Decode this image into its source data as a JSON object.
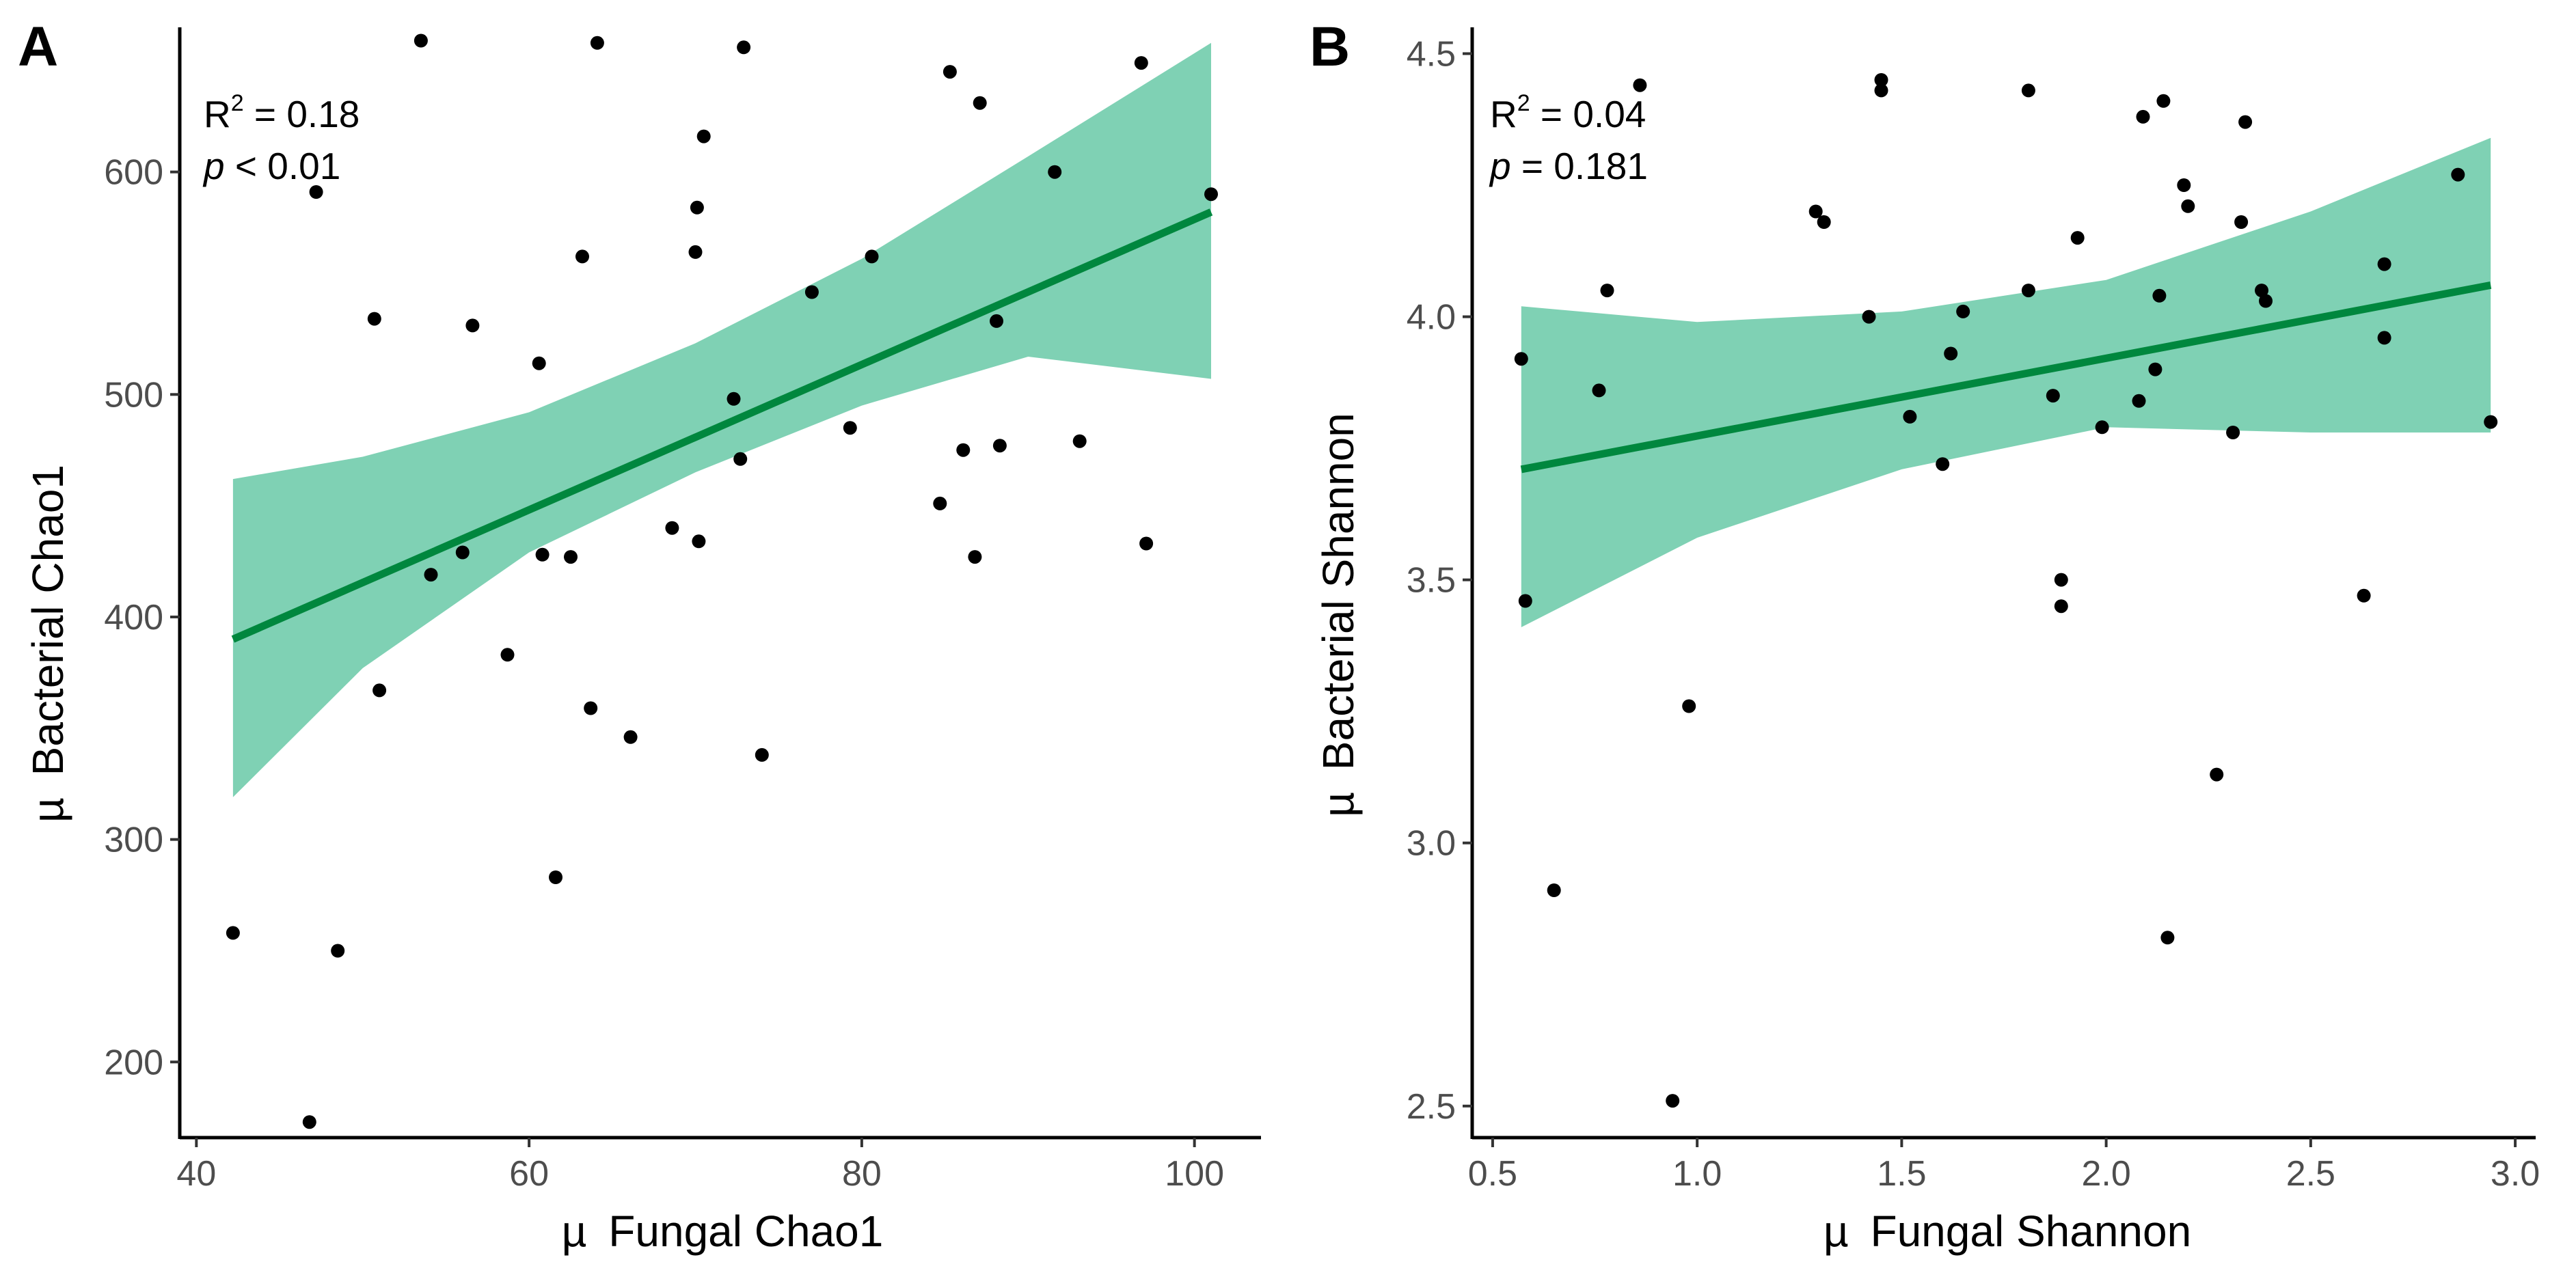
{
  "figure": {
    "panels": [
      "A",
      "B"
    ]
  },
  "chart_data": [
    {
      "type": "scatter",
      "panel_label": "A",
      "xlabel_symbol": "µ",
      "xlabel": "Fungal Chao1",
      "ylabel_symbol": "µ",
      "ylabel": "Bacterial Chao1",
      "xlim": [
        39,
        104
      ],
      "ylim": [
        166,
        665
      ],
      "xticks": [
        40,
        60,
        80,
        100
      ],
      "yticks": [
        200,
        300,
        400,
        500,
        600
      ],
      "annotation": {
        "r2_label": "R",
        "r2_sup": "2",
        "r2_value": " = 0.18",
        "p_label": "p",
        "p_value": " < 0.01"
      },
      "points": [
        [
          42.2,
          258
        ],
        [
          46.8,
          173
        ],
        [
          47.2,
          591
        ],
        [
          48.5,
          250
        ],
        [
          50.7,
          534
        ],
        [
          51.0,
          367
        ],
        [
          53.5,
          659
        ],
        [
          54.1,
          419
        ],
        [
          56.0,
          429
        ],
        [
          56.6,
          531
        ],
        [
          58.7,
          383
        ],
        [
          60.6,
          514
        ],
        [
          60.8,
          428
        ],
        [
          61.6,
          283
        ],
        [
          62.5,
          427
        ],
        [
          63.2,
          562
        ],
        [
          63.7,
          359
        ],
        [
          64.1,
          658
        ],
        [
          66.1,
          346
        ],
        [
          68.6,
          440
        ],
        [
          70.0,
          564
        ],
        [
          70.1,
          584
        ],
        [
          70.2,
          434
        ],
        [
          70.5,
          616
        ],
        [
          72.3,
          498
        ],
        [
          72.7,
          471
        ],
        [
          72.9,
          656
        ],
        [
          74.0,
          338
        ],
        [
          77.0,
          546
        ],
        [
          79.3,
          485
        ],
        [
          80.6,
          562
        ],
        [
          84.7,
          451
        ],
        [
          85.3,
          645
        ],
        [
          86.1,
          475
        ],
        [
          86.8,
          427
        ],
        [
          87.1,
          631
        ],
        [
          88.1,
          533
        ],
        [
          88.3,
          477
        ],
        [
          91.6,
          600
        ],
        [
          93.1,
          479
        ],
        [
          96.8,
          649
        ],
        [
          97.1,
          433
        ],
        [
          101.0,
          590
        ]
      ],
      "trend": {
        "x": [
          42.2,
          101.0
        ],
        "y": [
          390,
          582
        ]
      },
      "band": {
        "x": [
          42.2,
          50,
          60,
          70,
          80,
          90,
          101.0
        ],
        "upper": [
          462,
          472,
          492,
          523,
          561,
          607,
          658
        ],
        "lower": [
          319,
          377,
          429,
          465,
          495,
          517,
          507
        ]
      },
      "colors": {
        "points": "#000000",
        "line": "#00873e",
        "band": "#7fd1b4"
      }
    },
    {
      "type": "scatter",
      "panel_label": "B",
      "xlabel_symbol": "µ",
      "xlabel": "Fungal Shannon",
      "ylabel_symbol": "µ",
      "ylabel": "Bacterial Shannon",
      "xlim": [
        0.45,
        3.05
      ],
      "ylim": [
        2.44,
        4.55
      ],
      "xticks": [
        "0.5",
        "1.0",
        "1.5",
        "2.0",
        "2.5",
        "3.0"
      ],
      "yticks": [
        "2.5",
        "3.0",
        "3.5",
        "4.0",
        "4.5"
      ],
      "annotation": {
        "r2_label": "R",
        "r2_sup": "2",
        "r2_value": " = 0.04",
        "p_label": "p",
        "p_value": " = 0.181"
      },
      "points": [
        [
          0.57,
          3.92
        ],
        [
          0.58,
          3.46
        ],
        [
          0.65,
          2.91
        ],
        [
          0.76,
          3.86
        ],
        [
          0.78,
          4.05
        ],
        [
          0.86,
          4.44
        ],
        [
          0.94,
          2.51
        ],
        [
          0.98,
          3.26
        ],
        [
          1.29,
          4.2
        ],
        [
          1.31,
          4.18
        ],
        [
          1.42,
          4.0
        ],
        [
          1.45,
          4.45
        ],
        [
          1.45,
          4.43
        ],
        [
          1.52,
          3.81
        ],
        [
          1.6,
          3.72
        ],
        [
          1.62,
          3.93
        ],
        [
          1.65,
          4.01
        ],
        [
          1.81,
          4.05
        ],
        [
          1.81,
          4.43
        ],
        [
          1.87,
          3.85
        ],
        [
          1.89,
          3.5
        ],
        [
          1.89,
          3.45
        ],
        [
          1.93,
          4.15
        ],
        [
          1.99,
          3.79
        ],
        [
          2.08,
          3.84
        ],
        [
          2.09,
          4.38
        ],
        [
          2.12,
          3.9
        ],
        [
          2.13,
          4.04
        ],
        [
          2.14,
          4.41
        ],
        [
          2.15,
          2.82
        ],
        [
          2.19,
          4.25
        ],
        [
          2.2,
          4.21
        ],
        [
          2.27,
          3.13
        ],
        [
          2.31,
          3.78
        ],
        [
          2.33,
          4.18
        ],
        [
          2.34,
          4.37
        ],
        [
          2.38,
          4.05
        ],
        [
          2.39,
          4.03
        ],
        [
          2.63,
          3.47
        ],
        [
          2.68,
          4.1
        ],
        [
          2.68,
          3.96
        ],
        [
          2.86,
          4.27
        ],
        [
          2.94,
          3.8
        ]
      ],
      "trend": {
        "x": [
          0.57,
          2.94
        ],
        "y": [
          3.71,
          4.06
        ]
      },
      "band": {
        "x": [
          0.57,
          1.0,
          1.5,
          2.0,
          2.5,
          2.94
        ],
        "upper": [
          4.02,
          3.99,
          4.01,
          4.07,
          4.2,
          4.34
        ],
        "lower": [
          3.41,
          3.58,
          3.71,
          3.79,
          3.78,
          3.78
        ]
      },
      "colors": {
        "points": "#000000",
        "line": "#00873e",
        "band": "#7fd1b4"
      }
    }
  ]
}
